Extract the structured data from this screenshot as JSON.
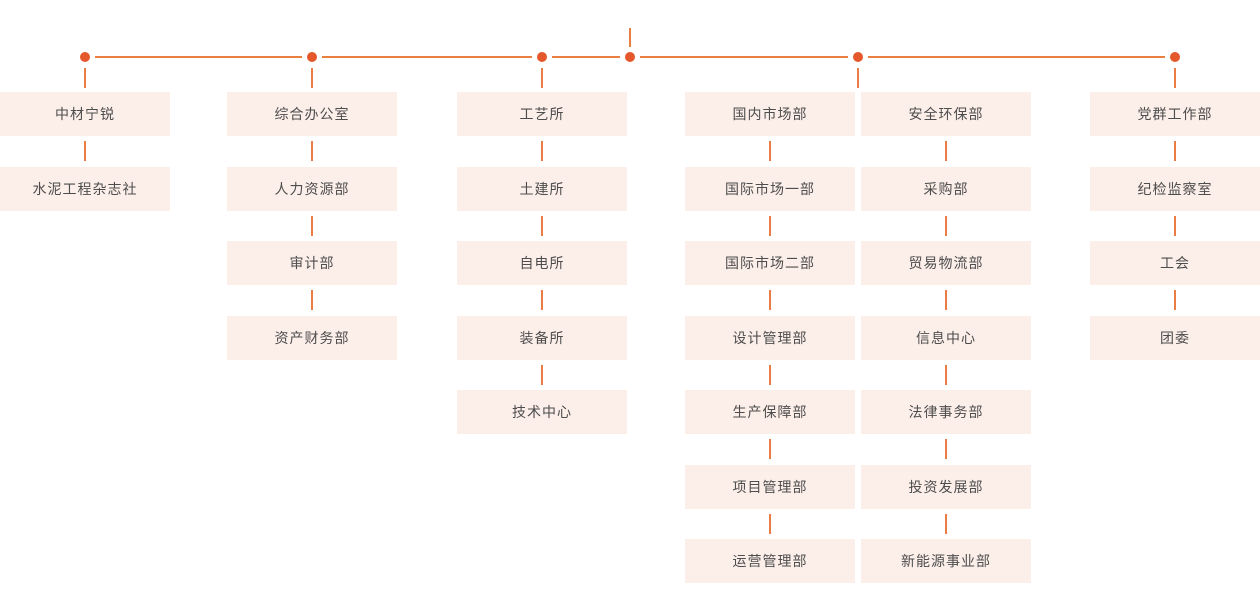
{
  "org_chart": {
    "colors": {
      "accent_dot": "#E4582B",
      "connector_line": "#E9803F",
      "node_background": "#FCEEE9",
      "node_text": "#4D4D4D",
      "page_background": "#FFFFFF"
    },
    "columns": [
      {
        "nodes": [
          "中材宁锐",
          "水泥工程杂志社"
        ]
      },
      {
        "nodes": [
          "综合办公室",
          "人力资源部",
          "审计部",
          "资产财务部"
        ]
      },
      {
        "nodes": [
          "工艺所",
          "土建所",
          "自电所",
          "装备所",
          "技术中心"
        ]
      },
      {
        "nodes": [
          "国内市场部",
          "国际市场一部",
          "国际市场二部",
          "设计管理部",
          "生产保障部",
          "项目管理部",
          "运营管理部"
        ]
      },
      {
        "nodes": [
          "安全环保部",
          "采购部",
          "贸易物流部",
          "信息中心",
          "法律事务部",
          "投资发展部",
          "新能源事业部"
        ]
      },
      {
        "nodes": [
          "党群工作部",
          "纪检监察室",
          "工会",
          "团委"
        ]
      }
    ]
  }
}
